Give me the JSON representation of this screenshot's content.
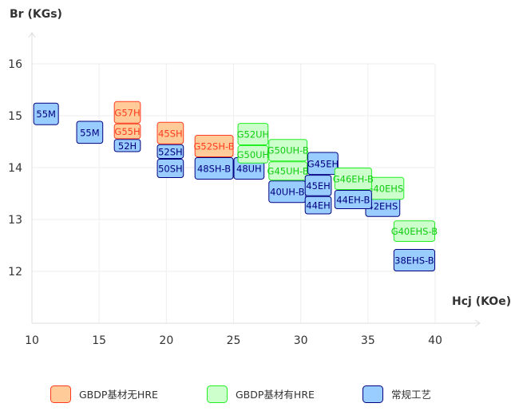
{
  "chart_data": {
    "type": "rectangle-range",
    "xlabel": "Hcj (KOe)",
    "ylabel": "Br (KGs)",
    "xlim": [
      10,
      40
    ],
    "ylim": [
      11,
      16
    ],
    "xticks": [
      "10",
      "15",
      "20",
      "25",
      "30",
      "35",
      "40"
    ],
    "yticks": [
      "12",
      "13",
      "14",
      "15",
      "16"
    ],
    "grid": true,
    "legend_position": "bottom",
    "series": [
      {
        "name": "GBDP基材无HRE",
        "fill": "#ffcc99",
        "stroke": "#ff3b1f",
        "text": "#ff3b1f"
      },
      {
        "name": "GBDP基材有HRE",
        "fill": "#ccffcc",
        "stroke": "#22ee22",
        "text": "#11cc11"
      },
      {
        "name": "常规工艺",
        "fill": "#99ccff",
        "stroke": "#000080",
        "text": "#000080"
      }
    ],
    "items": [
      {
        "label": "55M",
        "series": 2,
        "hcj": [
          10.1,
          12.0
        ],
        "br": [
          14.82,
          15.25
        ]
      },
      {
        "label": "55M",
        "series": 2,
        "hcj": [
          13.3,
          15.3
        ],
        "br": [
          14.46,
          14.9
        ]
      },
      {
        "label": "52H",
        "series": 2,
        "hcj": [
          16.1,
          18.1
        ],
        "br": [
          14.3,
          14.55
        ]
      },
      {
        "label": "G57H",
        "series": 0,
        "hcj": [
          16.1,
          18.1
        ],
        "br": [
          14.85,
          15.28
        ]
      },
      {
        "label": "G55H",
        "series": 0,
        "hcj": [
          16.1,
          18.1
        ],
        "br": [
          14.55,
          14.85
        ]
      },
      {
        "label": "50SH",
        "series": 2,
        "hcj": [
          19.3,
          21.3
        ],
        "br": [
          13.8,
          14.17
        ]
      },
      {
        "label": "52SH",
        "series": 2,
        "hcj": [
          19.3,
          21.3
        ],
        "br": [
          14.17,
          14.45
        ]
      },
      {
        "label": "45SH",
        "series": 0,
        "hcj": [
          19.3,
          21.3
        ],
        "br": [
          14.45,
          14.88
        ]
      },
      {
        "label": "48SH-B",
        "series": 2,
        "hcj": [
          22.1,
          25.0
        ],
        "br": [
          13.77,
          14.2
        ]
      },
      {
        "label": "G52SH-B",
        "series": 0,
        "hcj": [
          22.1,
          25.0
        ],
        "br": [
          14.2,
          14.63
        ]
      },
      {
        "label": "48UH",
        "series": 2,
        "hcj": [
          25.0,
          27.3
        ],
        "br": [
          13.77,
          14.2
        ]
      },
      {
        "label": "G52UH",
        "series": 1,
        "hcj": [
          25.3,
          27.6
        ],
        "br": [
          14.43,
          14.86
        ]
      },
      {
        "label": "G50UH",
        "series": 1,
        "hcj": [
          25.3,
          27.6
        ],
        "br": [
          14.08,
          14.43
        ]
      },
      {
        "label": "40UH-B",
        "series": 2,
        "hcj": [
          27.6,
          30.4
        ],
        "br": [
          13.32,
          13.75
        ]
      },
      {
        "label": "G50UH-B",
        "series": 1,
        "hcj": [
          27.6,
          30.5
        ],
        "br": [
          14.12,
          14.55
        ]
      },
      {
        "label": "G45UH-B",
        "series": 1,
        "hcj": [
          27.6,
          30.5
        ],
        "br": [
          13.75,
          14.12
        ]
      },
      {
        "label": "G45EH",
        "series": 2,
        "hcj": [
          30.5,
          32.8
        ],
        "br": [
          13.86,
          14.3
        ]
      },
      {
        "label": "45EH",
        "series": 2,
        "hcj": [
          30.3,
          32.3
        ],
        "br": [
          13.45,
          13.86
        ]
      },
      {
        "label": "44EH",
        "series": 2,
        "hcj": [
          30.3,
          32.3
        ],
        "br": [
          13.1,
          13.45
        ]
      },
      {
        "label": "42EHS",
        "series": 2,
        "hcj": [
          34.8,
          37.4
        ],
        "br": [
          13.05,
          13.48
        ]
      },
      {
        "label": "G40EHS",
        "series": 1,
        "hcj": [
          34.8,
          37.7
        ],
        "br": [
          13.38,
          13.82
        ]
      },
      {
        "label": "G46EH-B",
        "series": 1,
        "hcj": [
          32.5,
          35.3
        ],
        "br": [
          13.57,
          14.0
        ]
      },
      {
        "label": "44EH-B",
        "series": 2,
        "hcj": [
          32.5,
          35.3
        ],
        "br": [
          13.2,
          13.57
        ]
      },
      {
        "label": "G40EHS-B",
        "series": 1,
        "hcj": [
          36.9,
          40.0
        ],
        "br": [
          12.57,
          12.98
        ]
      },
      {
        "label": "38EHS-B",
        "series": 2,
        "hcj": [
          36.9,
          40.0
        ],
        "br": [
          12.0,
          12.43
        ]
      }
    ]
  }
}
